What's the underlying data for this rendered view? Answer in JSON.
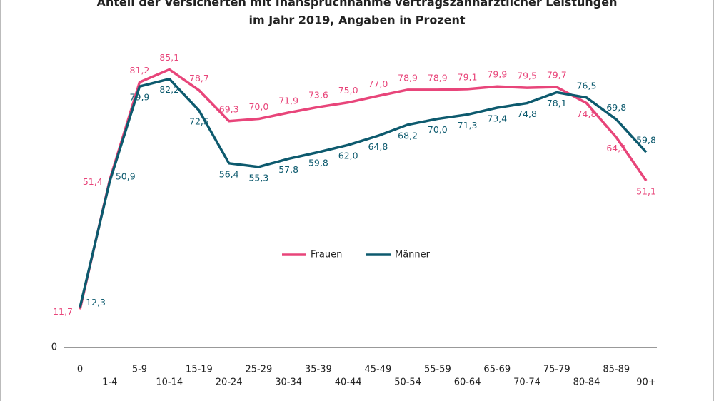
{
  "chart_data": {
    "type": "line",
    "title": [
      "Anteil der Versicherten mit Inanspruchnahme vertragszahnärztlicher Leistungen",
      "im Jahr 2019, Angaben in Prozent"
    ],
    "categories": [
      "0",
      "1-4",
      "5-9",
      "10-14",
      "15-19",
      "20-24",
      "25-29",
      "30-34",
      "35-39",
      "40-44",
      "45-49",
      "50-54",
      "55-59",
      "60-64",
      "65-69",
      "70-74",
      "75-79",
      "80-84",
      "85-89",
      "90+"
    ],
    "series": [
      {
        "name": "Frauen",
        "color": "#e8457a",
        "values": [
          11.7,
          51.4,
          81.2,
          85.1,
          78.7,
          69.3,
          70.0,
          71.9,
          73.6,
          75.0,
          77.0,
          78.9,
          78.9,
          79.1,
          79.9,
          79.5,
          79.7,
          74.8,
          64.3,
          51.1
        ],
        "value_labels": [
          "11,7",
          "51,4",
          "81,2",
          "85,1",
          "78,7",
          "69,3",
          "70,0",
          "71,9",
          "73,6",
          "75,0",
          "77,0",
          "78,9",
          "78,9",
          "79,1",
          "79,9",
          "79,5",
          "79,7",
          "74,8",
          "64,3",
          "51,1"
        ]
      },
      {
        "name": "Männer",
        "color": "#0d5a6e",
        "values": [
          12.3,
          50.9,
          79.9,
          82.2,
          72.5,
          56.4,
          55.3,
          57.8,
          59.8,
          62.0,
          64.8,
          68.2,
          70.0,
          71.3,
          73.4,
          74.8,
          78.1,
          76.5,
          69.8,
          59.8
        ],
        "value_labels": [
          "12,3",
          "50,9",
          "79,9",
          "82,2",
          "72,5",
          "56,4",
          "55,3",
          "57,8",
          "59,8",
          "62,0",
          "64,8",
          "68,2",
          "70,0",
          "71,3",
          "73,4",
          "74,8",
          "78,1",
          "76,5",
          "69,8",
          "59,8"
        ]
      }
    ],
    "ylim": [
      0,
      90
    ],
    "yticks": [
      0
    ],
    "legend": "center"
  }
}
